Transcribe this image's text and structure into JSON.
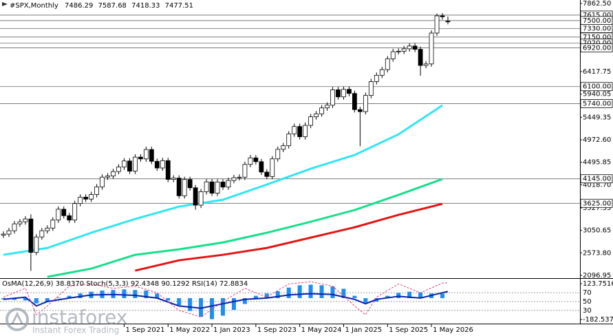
{
  "chart_data": {
    "type": "candlestick",
    "title": "#SPX,Monthly",
    "categories": [
      null,
      null,
      null,
      null,
      null,
      null,
      null,
      null,
      null,
      null,
      null,
      null,
      null,
      null,
      null,
      null,
      null,
      null,
      null,
      null,
      null,
      null,
      "1 Sep 2021",
      null,
      null,
      null,
      null,
      null,
      null,
      null,
      "1 May 2022",
      null,
      null,
      null,
      null,
      null,
      null,
      null,
      "1 Jan 2023",
      null,
      null,
      null,
      null,
      null,
      null,
      null,
      "1 Sep 2023",
      null,
      null,
      null,
      null,
      null,
      null,
      null,
      "1 May 2024",
      null,
      null,
      null,
      null,
      null,
      null,
      null,
      "1 Jan 2025",
      null,
      null,
      null,
      null,
      null,
      null,
      null,
      "1 Sep 2025",
      null,
      null,
      null,
      null,
      null,
      null,
      null,
      "1 May 2026",
      null,
      null,
      null
    ],
    "open": [
      2950,
      2972,
      3044,
      3190,
      3234,
      3293,
      2585,
      2912,
      3044,
      3100,
      3271,
      3500,
      3363,
      3270,
      3621,
      3756,
      3714,
      3811,
      3973,
      4181,
      4204,
      4298,
      4395,
      4523,
      4307,
      4605,
      4567,
      4766,
      4516,
      4374,
      4530,
      4132,
      4160,
      3785,
      4130,
      3955,
      3586,
      3872,
      4080,
      3840,
      4077,
      3970,
      4109,
      4169,
      4180,
      4450,
      4589,
      4508,
      4288,
      4194,
      4568,
      4770,
      4846,
      5096,
      5254,
      5036,
      5278,
      5460,
      5522,
      5648,
      5705,
      6032,
      5882,
      6041,
      5955,
      5612,
      5569,
      5912,
      6205,
      6339,
      6460,
      6688,
      6840,
      6849,
      6901,
      6960,
      6890,
      6548,
      6580,
      7235,
      7600,
      7486.29
    ],
    "high": [
      3032,
      3104,
      3250,
      3294,
      3353,
      3393,
      2972,
      3104,
      3160,
      3331,
      3560,
      3560,
      3423,
      3681,
      3816,
      3816,
      3871,
      4033,
      4241,
      4264,
      4358,
      4455,
      4583,
      4583,
      4665,
      4665,
      4826,
      4826,
      4576,
      4590,
      4590,
      4220,
      4220,
      4190,
      4190,
      4015,
      3932,
      4140,
      4140,
      4137,
      4137,
      4169,
      4229,
      4240,
      4510,
      4649,
      4649,
      4568,
      4348,
      4628,
      4830,
      4906,
      5156,
      5314,
      5314,
      5338,
      5520,
      5582,
      5708,
      5765,
      6092,
      6092,
      6101,
      6101,
      6015,
      5672,
      5972,
      6265,
      6399,
      6520,
      6748,
      6900,
      6909,
      6961,
      7020,
      7020,
      6950,
      6640,
      7295,
      7650,
      7660,
      7587.68
    ],
    "low": [
      2890,
      2912,
      2984,
      3130,
      3174,
      2192,
      2525,
      2852,
      2984,
      3040,
      3211,
      3303,
      3210,
      3210,
      3561,
      3654,
      3654,
      3751,
      3913,
      4121,
      4144,
      4238,
      4335,
      4247,
      4247,
      4507,
      4507,
      4456,
      4314,
      4314,
      4072,
      4072,
      3725,
      3725,
      3895,
      3490,
      3526,
      3812,
      3780,
      3780,
      3910,
      3910,
      4049,
      4109,
      4120,
      4390,
      4448,
      4228,
      4134,
      4134,
      4508,
      4710,
      4786,
      5036,
      4976,
      4976,
      5218,
      5400,
      5462,
      5588,
      5645,
      5822,
      5822,
      5895,
      5552,
      4835,
      5509,
      5852,
      6145,
      6279,
      6400,
      6628,
      6780,
      6789,
      6841,
      6830,
      6330,
      6488,
      6520,
      7175,
      7520,
      7418.33
    ],
    "close": [
      2972,
      3044,
      3190,
      3234,
      3293,
      2585,
      2912,
      3044,
      3100,
      3271,
      3500,
      3363,
      3270,
      3621,
      3756,
      3714,
      3811,
      3973,
      4181,
      4204,
      4298,
      4395,
      4523,
      4307,
      4605,
      4567,
      4766,
      4516,
      4374,
      4530,
      4132,
      4160,
      3785,
      4130,
      3955,
      3586,
      3872,
      4080,
      3840,
      4077,
      3970,
      4109,
      4169,
      4180,
      4450,
      4589,
      4508,
      4288,
      4194,
      4568,
      4770,
      4846,
      5096,
      5254,
      5036,
      5278,
      5460,
      5522,
      5648,
      5705,
      6032,
      5882,
      6041,
      5955,
      5612,
      5569,
      5912,
      6205,
      6339,
      6460,
      6688,
      6840,
      6849,
      6901,
      6960,
      6890,
      6548,
      6580,
      7235,
      7600,
      7580,
      7477.51
    ],
    "up_color": "#ffffff",
    "down_color": "#000000",
    "ylim": [
      2096.95,
      7862.5
    ],
    "yticks": [
      {
        "value": 7862.5,
        "label": "7862.50"
      },
      {
        "value": 6417.75,
        "label": "6417.75"
      },
      {
        "value": 5940.05,
        "label": "5940.05"
      },
      {
        "value": 5449.35,
        "label": "5449.35"
      },
      {
        "value": 4972.6,
        "label": "4972.60"
      },
      {
        "value": 4495.85,
        "label": "4495.85"
      },
      {
        "value": 4018.7,
        "label": "4018.70"
      },
      {
        "value": 3527.35,
        "label": "3527.35"
      },
      {
        "value": 3050.65,
        "label": "3050.65"
      },
      {
        "value": 2573.8,
        "label": "2573.80"
      },
      {
        "value": 2096.95,
        "label": "2096.95"
      }
    ],
    "levels": [
      {
        "value": 7615,
        "label": "7615.00"
      },
      {
        "value": 7500,
        "label": "7500.00"
      },
      {
        "value": 7330,
        "label": "7330.00"
      },
      {
        "value": 7150,
        "label": "7150.00"
      },
      {
        "value": 7020,
        "label": "7020.00"
      },
      {
        "value": 6920,
        "label": "6920.00"
      },
      {
        "value": 6100,
        "label": "6100.00"
      },
      {
        "value": 5740,
        "label": "5740.00"
      },
      {
        "value": 4145,
        "label": "4145.00"
      },
      {
        "value": 3625,
        "label": "3625.00"
      }
    ],
    "series": [
      {
        "color": "#2ee6f2",
        "x": [
          0,
          8,
          16,
          24,
          32,
          40,
          48,
          56,
          64,
          72,
          80
        ],
        "values": [
          2534,
          2679,
          3001,
          3293,
          3556,
          3701,
          4023,
          4358,
          4650,
          5088,
          5702
        ]
      },
      {
        "color": "#14e08a",
        "x": [
          8,
          16,
          24,
          32,
          40,
          48,
          56,
          64,
          72,
          80
        ],
        "values": [
          2066,
          2241,
          2533,
          2650,
          2796,
          3001,
          3234,
          3483,
          3804,
          4139
        ]
      },
      {
        "color": "#e41414",
        "x": [
          24,
          32,
          40,
          48,
          56,
          64,
          72,
          80
        ],
        "values": [
          2198,
          2417,
          2534,
          2679,
          2898,
          3117,
          3380,
          3614
        ]
      }
    ],
    "indicator": {
      "title": "OsMA(12,26,9) 38.8370  Stoch(5,3,3) 92.4348 90.1292  RSI(14) 72.8834",
      "ylim": [
        -182.5377,
        123.7516
      ],
      "yticks": [
        123.7516,
        -182.5377
      ],
      "color": "#1e8ff0",
      "x": [
        0,
        2,
        4,
        6,
        8,
        10,
        12,
        14,
        16,
        18,
        20,
        22,
        24,
        26,
        28,
        30,
        32,
        34,
        36,
        38,
        40,
        42,
        44,
        46,
        48,
        50,
        52,
        54,
        56,
        58,
        60,
        62,
        64,
        66,
        68,
        70,
        72,
        74,
        76,
        78,
        80
      ],
      "values": [
        -10,
        -15,
        -20,
        -45,
        -30,
        5,
        20,
        40,
        55,
        65,
        70,
        75,
        70,
        65,
        40,
        -20,
        -60,
        -110,
        -160,
        -180,
        -150,
        -100,
        -50,
        20,
        40,
        60,
        90,
        110,
        115,
        110,
        100,
        80,
        20,
        -40,
        -30,
        20,
        45,
        55,
        50,
        40,
        38.837
      ],
      "osc_ylim": [
        0,
        100
      ],
      "osc_yticks": [
        70,
        50,
        30
      ],
      "lines": [
        {
          "color": "#0a1fa8",
          "x": [
            0,
            4,
            6,
            8,
            12,
            16,
            20,
            24,
            28,
            32,
            36,
            40,
            44,
            48,
            52,
            56,
            60,
            64,
            66,
            68,
            72,
            76,
            80,
            81
          ],
          "values": [
            55,
            60,
            40,
            50,
            58,
            65,
            66,
            64,
            58,
            40,
            35,
            45,
            55,
            58,
            65,
            68,
            66,
            55,
            45,
            55,
            62,
            58,
            70,
            72.8834
          ]
        },
        {
          "color": "#e0407a",
          "x": [
            0,
            4,
            6,
            8,
            12,
            16,
            20,
            24,
            28,
            32,
            36,
            40,
            44,
            48,
            52,
            56,
            60,
            64,
            66,
            68,
            72,
            76,
            80,
            81
          ],
          "values": [
            60,
            80,
            20,
            40,
            85,
            90,
            80,
            85,
            70,
            30,
            15,
            50,
            80,
            60,
            90,
            95,
            85,
            40,
            20,
            60,
            90,
            70,
            92,
            92.4348
          ]
        }
      ]
    }
  },
  "brand": {
    "name": "instaforex",
    "tagline": "Instant Forex Trading"
  }
}
